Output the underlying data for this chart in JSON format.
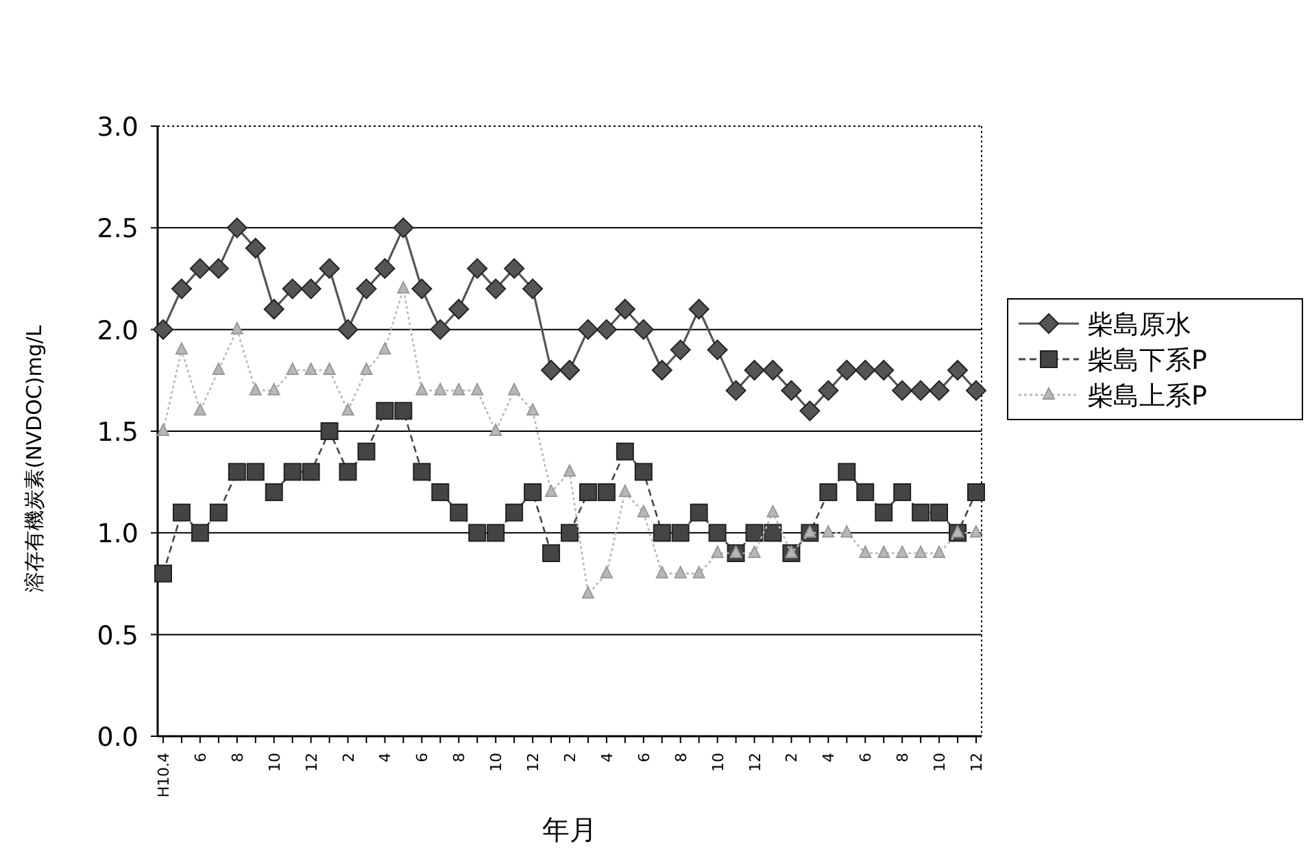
{
  "chart_data": {
    "type": "line",
    "xlabel": "年月",
    "ylabel": "溶存有機炭素(NVDOC)mg/L",
    "categories": [
      "H10.4",
      null,
      "6",
      null,
      "8",
      null,
      "10",
      null,
      "12",
      null,
      "2",
      null,
      "4",
      null,
      "6",
      null,
      "8",
      null,
      "10",
      null,
      "12",
      null,
      "2",
      null,
      "4",
      null,
      "6",
      null,
      "8",
      null,
      "10",
      null,
      "12",
      null,
      "2",
      null,
      "4",
      null,
      "6",
      null,
      "8",
      null,
      "10",
      null,
      "12"
    ],
    "ylim": [
      0,
      3
    ],
    "yticks": [
      {
        "value": 0,
        "label": "0.0"
      },
      {
        "value": 0.5,
        "label": "0.5"
      },
      {
        "value": 1,
        "label": "1.0"
      },
      {
        "value": 1.5,
        "label": "1.5"
      },
      {
        "value": 2,
        "label": "2.0"
      },
      {
        "value": 2.5,
        "label": "2.5"
      },
      {
        "value": 3,
        "label": "3.0"
      }
    ],
    "grid": "y",
    "legend": "right",
    "series": [
      {
        "name": "柴島原水",
        "color": "#555555",
        "marker": "diamond",
        "line_style": "solid",
        "values": [
          2.0,
          2.2,
          2.3,
          2.3,
          2.5,
          2.4,
          2.1,
          2.2,
          2.2,
          2.3,
          2.0,
          2.2,
          2.3,
          2.5,
          2.2,
          2.0,
          2.1,
          2.3,
          2.2,
          2.3,
          2.2,
          1.8,
          1.8,
          2.0,
          2.0,
          2.1,
          2.0,
          1.8,
          1.9,
          2.1,
          1.9,
          1.7,
          1.8,
          1.8,
          1.7,
          1.6,
          1.7,
          1.8,
          1.8,
          1.8,
          1.7,
          1.7,
          1.7,
          1.8,
          1.7
        ]
      },
      {
        "name": "柴島下系P",
        "color": "#444444",
        "marker": "square",
        "line_style": "dashed",
        "values": [
          0.8,
          1.1,
          1.0,
          1.1,
          1.3,
          1.3,
          1.2,
          1.3,
          1.3,
          1.5,
          1.3,
          1.4,
          1.6,
          1.6,
          1.3,
          1.2,
          1.1,
          1.0,
          1.0,
          1.1,
          1.2,
          0.9,
          1.0,
          1.2,
          1.2,
          1.4,
          1.3,
          1.0,
          1.0,
          1.1,
          1.0,
          0.9,
          1.0,
          1.0,
          0.9,
          1.0,
          1.2,
          1.3,
          1.2,
          1.1,
          1.2,
          1.1,
          1.1,
          1.0,
          1.2
        ]
      },
      {
        "name": "柴島上系P",
        "color": "#b8b8b8",
        "marker": "triangle",
        "line_style": "dotted",
        "values": [
          1.5,
          1.9,
          1.6,
          1.8,
          2.0,
          1.7,
          1.7,
          1.8,
          1.8,
          1.8,
          1.6,
          1.8,
          1.9,
          2.2,
          1.7,
          1.7,
          1.7,
          1.7,
          1.5,
          1.7,
          1.6,
          1.2,
          1.3,
          0.7,
          0.8,
          1.2,
          1.1,
          0.8,
          0.8,
          0.8,
          0.9,
          0.9,
          0.9,
          1.1,
          0.9,
          1.0,
          1.0,
          1.0,
          0.9,
          0.9,
          0.9,
          0.9,
          0.9,
          1.0,
          1.0
        ]
      }
    ]
  }
}
